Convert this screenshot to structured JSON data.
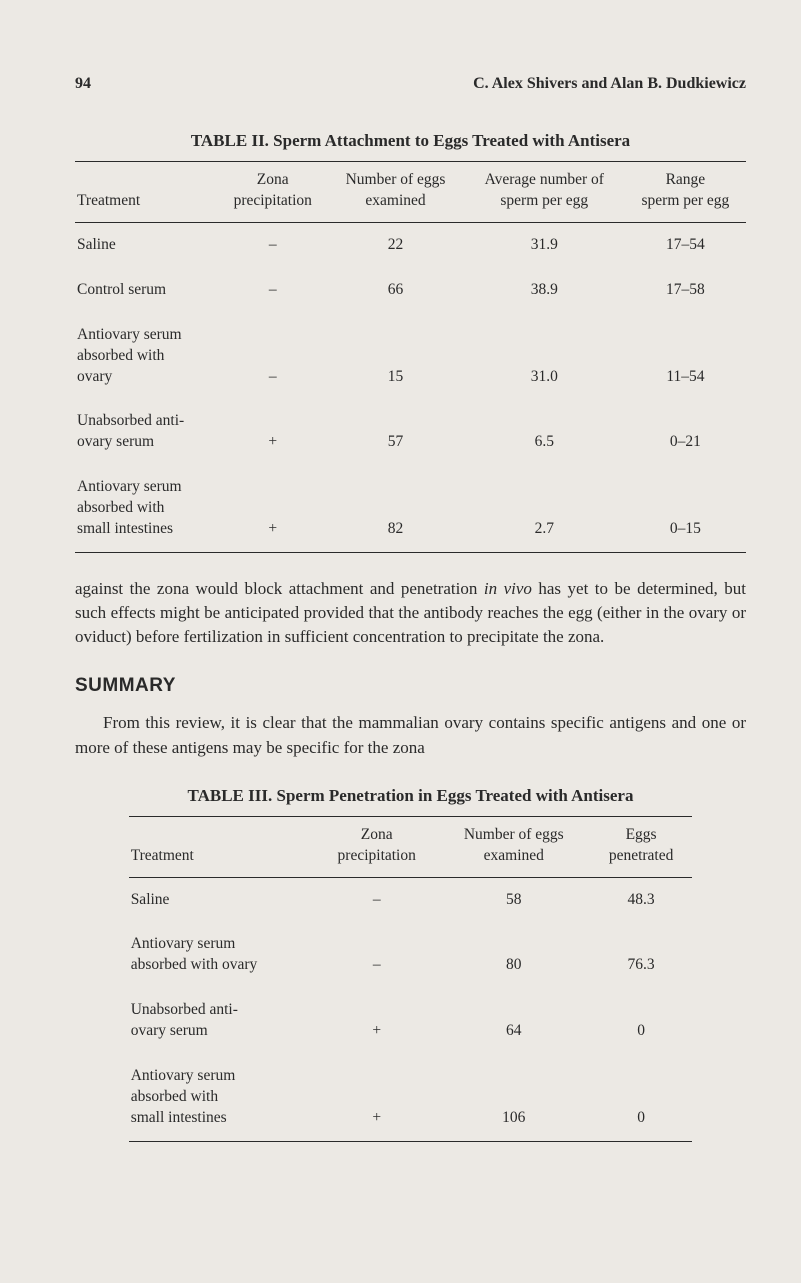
{
  "page_number": "94",
  "authors": "C. Alex Shivers and Alan B. Dudkiewicz",
  "table2": {
    "title": "TABLE II.  Sperm Attachment to Eggs Treated with Antisera",
    "columns": [
      "Treatment",
      "Zona\nprecipitation",
      "Number of eggs\nexamined",
      "Average number of\nsperm per egg",
      "Range\nsperm per egg"
    ],
    "rows": [
      [
        "Saline",
        "–",
        "22",
        "31.9",
        "17–54"
      ],
      [
        "Control serum",
        "–",
        "66",
        "38.9",
        "17–58"
      ],
      [
        "Antiovary serum\n    absorbed with\n    ovary",
        "–",
        "15",
        "31.0",
        "11–54"
      ],
      [
        "Unabsorbed anti-\n    ovary serum",
        "+",
        "57",
        "6.5",
        "0–21"
      ],
      [
        "Antiovary serum\n    absorbed with\n    small intestines",
        "+",
        "82",
        "2.7",
        "0–15"
      ]
    ]
  },
  "paragraph1_a": "against the zona would block attachment and penetration ",
  "paragraph1_em": "in vivo",
  "paragraph1_b": " has yet to be determined, but such effects might be anticipated provided that the antibody reaches the egg (either in the ovary or oviduct) before fertilization in sufficient concentration to precipitate the zona.",
  "summary_heading": "SUMMARY",
  "paragraph2": "From this review, it is clear that the mammalian ovary contains specific antigens and one or more of these antigens may be specific for the zona",
  "table3": {
    "title": "TABLE III.    Sperm Penetration in Eggs Treated with Antisera",
    "columns": [
      "Treatment",
      "Zona\nprecipitation",
      "Number of eggs\nexamined",
      "Eggs\npenetrated"
    ],
    "rows": [
      [
        "Saline",
        "–",
        "58",
        "48.3"
      ],
      [
        "Antiovary serum\n    absorbed with ovary",
        "–",
        "80",
        "76.3"
      ],
      [
        "Unabsorbed anti-\n    ovary serum",
        "+",
        "64",
        "0"
      ],
      [
        "Antiovary serum\n    absorbed with\n    small intestines",
        "+",
        "106",
        "0"
      ]
    ]
  }
}
